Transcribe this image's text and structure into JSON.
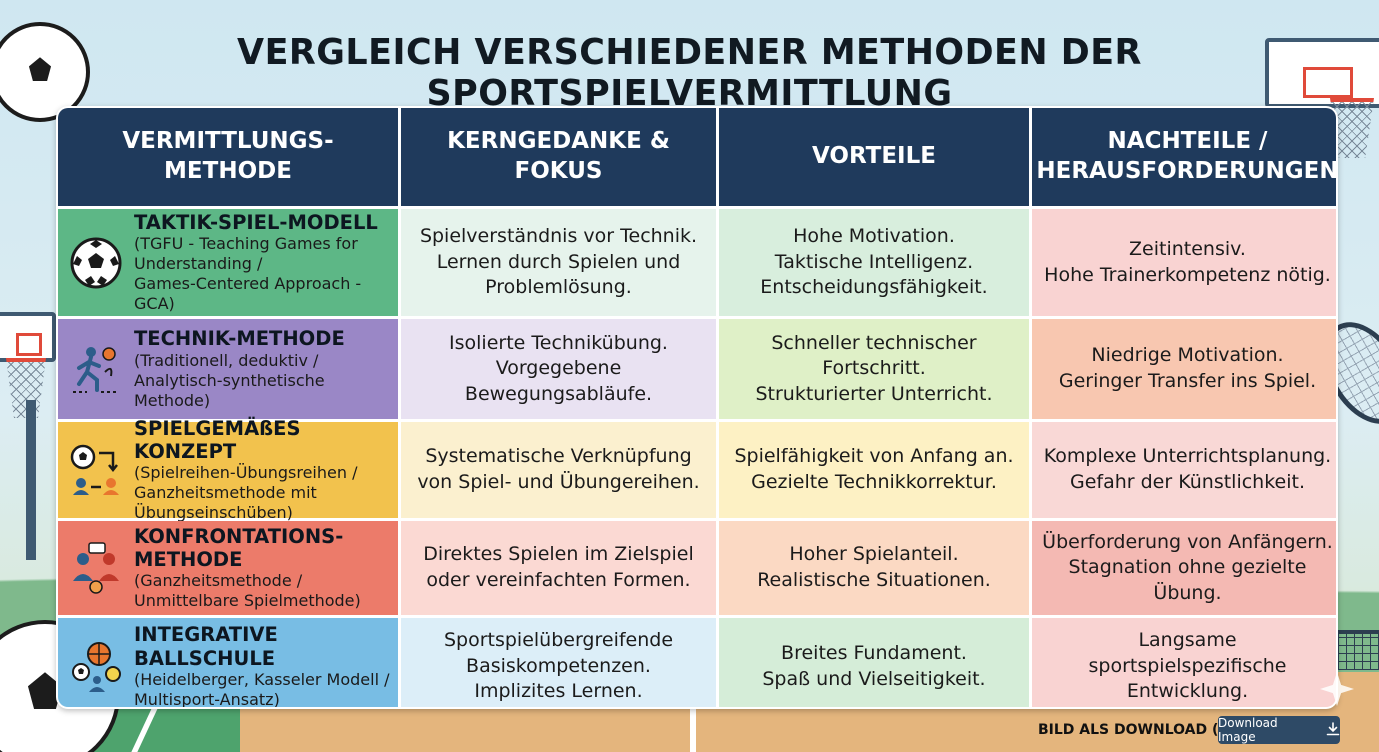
{
  "title": "VERGLEICH VERSCHIEDENER METHODEN DER SPORTSPIELVERMITTLUNG",
  "headers": [
    "VERMITTLUNGS-\nMETHODE",
    "KERNGEDANKE & FOKUS",
    "VORTEILE",
    "NACHTEILE /\nHERAUSFORDERUNGEN"
  ],
  "rows": [
    {
      "method": "TAKTIK-SPIEL-MODELL",
      "method_sub": "(TGFU - Teaching Games for\nUnderstanding /\nGames-Centered Approach - GCA)",
      "icon": "soccer-ball-icon",
      "focus": "Spielverständnis vor Technik.\nLernen durch Spielen und\nProblemlösung.",
      "pros": "Hohe Motivation.\nTaktische Intelligenz.\nEntscheidungsfähigkeit.",
      "cons": "Zeitintensiv.\nHohe Trainerkompetenz nötig."
    },
    {
      "method": "TECHNIK-METHODE",
      "method_sub": "(Traditionell, deduktiv /\nAnalytisch-synthetische Methode)",
      "icon": "player-drill-icon",
      "focus": "Isolierte Technikübung.\nVorgegebene Bewegungsabläufe.",
      "pros": "Schneller technischer\nFortschritt.\nStrukturierter Unterricht.",
      "cons": "Niedrige Motivation.\nGeringer Transfer ins Spiel."
    },
    {
      "method": "SPIELGEMÄßES KONZEPT",
      "method_sub": "(Spielreihen-Übungsreihen /\nGanzheitsmethode mit\nÜbungseinschüben)",
      "icon": "game-cycle-icon",
      "focus": "Systematische Verknüpfung\nvon Spiel- und Übungereihen.",
      "pros": "Spielfähigkeit von Anfang an.\nGezielte Technikkorrektur.",
      "cons": "Komplexe Unterrichtsplanung.\nGefahr der Künstlichkeit."
    },
    {
      "method": "KONFRONTATIONS-METHODE",
      "method_sub": "(Ganzheitsmethode /\nUnmittelbare Spielmethode)",
      "icon": "confrontation-icon",
      "focus": "Direktes Spielen im Zielspiel\noder vereinfachten Formen.",
      "pros": "Hoher Spielanteil.\nRealistische Situationen.",
      "cons": "Überforderung von Anfängern.\nStagnation ohne gezielte Übung."
    },
    {
      "method": "INTEGRATIVE BALLSCHULE",
      "method_sub": "(Heidelberger, Kasseler Modell /\nMultisport-Ansatz)",
      "icon": "multi-ball-icon",
      "focus": "Sportspielübergreifende\nBasiskompetenzen.\nImplizites Lernen.",
      "pros": "Breites Fundament.\nSpaß und Vielseitigkeit.",
      "cons": "Langsame\nsportspielspezifische\nEntwicklung."
    }
  ],
  "footer": {
    "download_label": "BILD ALS DOWNLOAD (DL)",
    "download_button": "Download Image",
    "download_icon": "download-icon"
  },
  "colors": {
    "header_bg": "#1f3a5c",
    "method_colors": [
      "#5db786",
      "#9a87c6",
      "#f2c24d",
      "#ec7b6a",
      "#78bde4"
    ]
  }
}
